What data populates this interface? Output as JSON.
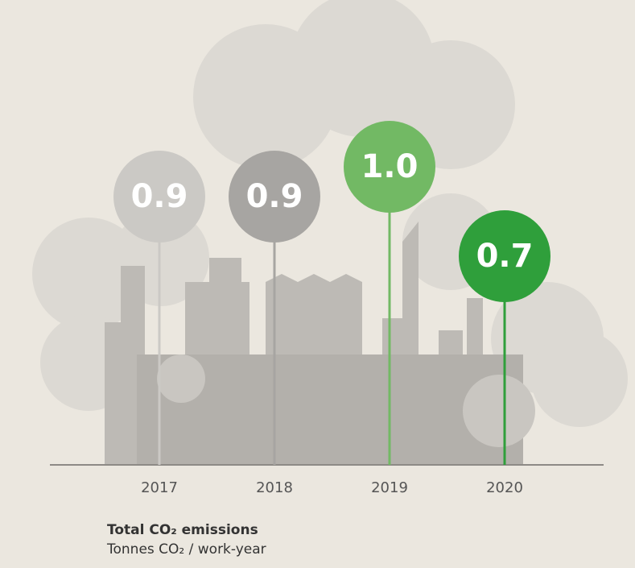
{
  "chart_data": {
    "type": "lollipop",
    "title": "Total CO₂ emissions",
    "subtitle": "Tonnes CO₂ / work-year",
    "categories": [
      "2017",
      "2018",
      "2019",
      "2020"
    ],
    "values": [
      0.9,
      0.9,
      1.0,
      0.7
    ],
    "value_labels": [
      "0.9",
      "0.9",
      "1.0",
      "0.7"
    ],
    "colors": [
      "#cbc9c5",
      "#a7a5a2",
      "#72b964",
      "#2f9f3b"
    ]
  }
}
